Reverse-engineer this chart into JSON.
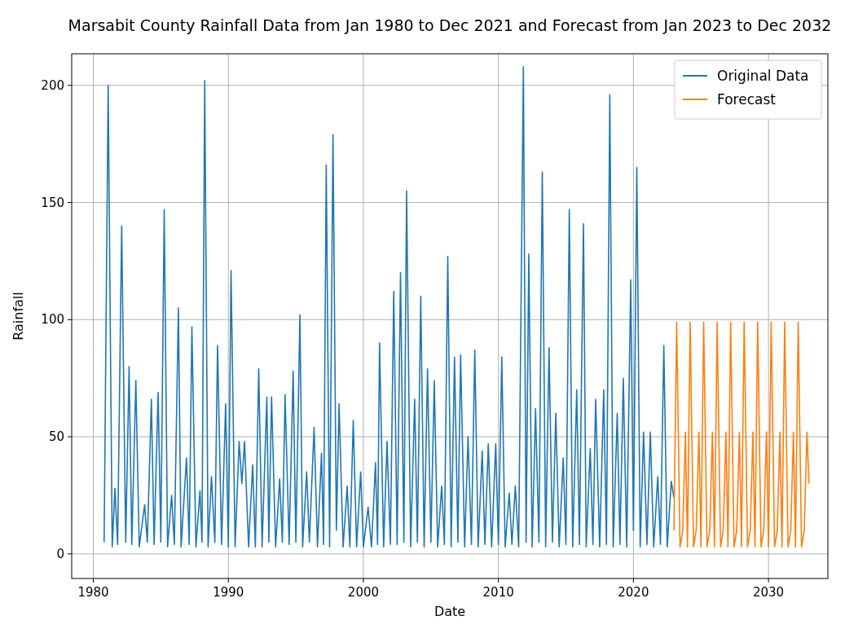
{
  "chart_data": {
    "type": "line",
    "title": "Marsabit County Rainfall Data from Jan 1980 to Dec 2021 and Forecast from Jan 2023 to Dec 2032",
    "xlabel": "Date",
    "ylabel": "Rainfall",
    "xlim": [
      1978.4,
      2034.4
    ],
    "xticks": [
      1980,
      1990,
      2000,
      2010,
      2020,
      2030
    ],
    "ylim": [
      -10.5,
      213.5
    ],
    "yticks": [
      0,
      50,
      100,
      150,
      200
    ],
    "grid": true,
    "legend": "top right",
    "series": [
      {
        "name": "Original Data",
        "color": "#1f77b4",
        "x": [
          1980.8,
          1981.1,
          1981.4,
          1981.6,
          1981.8,
          1982.1,
          1982.4,
          1982.65,
          1982.85,
          1983.15,
          1983.4,
          1983.8,
          1984.0,
          1984.3,
          1984.5,
          1984.8,
          1985.0,
          1985.25,
          1985.5,
          1985.8,
          1986.0,
          1986.3,
          1986.5,
          1986.9,
          1987.1,
          1987.3,
          1987.6,
          1987.9,
          1988.05,
          1988.25,
          1988.5,
          1988.75,
          1989.0,
          1989.2,
          1989.5,
          1989.8,
          1990.0,
          1990.2,
          1990.5,
          1990.8,
          1991.0,
          1991.2,
          1991.5,
          1991.8,
          1992.0,
          1992.25,
          1992.5,
          1992.85,
          1993.0,
          1993.2,
          1993.5,
          1993.8,
          1994.0,
          1994.2,
          1994.5,
          1994.8,
          1995.0,
          1995.3,
          1995.5,
          1995.8,
          1996.0,
          1996.35,
          1996.6,
          1996.9,
          1997.05,
          1997.25,
          1997.5,
          1997.75,
          1998.0,
          1998.2,
          1998.5,
          1998.8,
          1999.0,
          1999.25,
          1999.5,
          1999.8,
          2000.0,
          2000.35,
          2000.6,
          2000.9,
          2001.05,
          2001.2,
          2001.5,
          2001.75,
          2002.0,
          2002.25,
          2002.5,
          2002.75,
          2003.0,
          2003.2,
          2003.5,
          2003.8,
          2004.0,
          2004.25,
          2004.5,
          2004.75,
          2005.0,
          2005.25,
          2005.5,
          2005.8,
          2006.0,
          2006.25,
          2006.5,
          2006.75,
          2007.0,
          2007.2,
          2007.5,
          2007.75,
          2008.0,
          2008.25,
          2008.5,
          2008.8,
          2009.0,
          2009.25,
          2009.5,
          2009.8,
          2010.0,
          2010.25,
          2010.5,
          2010.8,
          2011.0,
          2011.25,
          2011.5,
          2011.85,
          2012.05,
          2012.25,
          2012.5,
          2012.75,
          2013.0,
          2013.25,
          2013.5,
          2013.75,
          2014.0,
          2014.25,
          2014.5,
          2014.8,
          2015.0,
          2015.25,
          2015.5,
          2015.8,
          2016.0,
          2016.3,
          2016.5,
          2016.8,
          2017.0,
          2017.2,
          2017.5,
          2017.8,
          2018.0,
          2018.25,
          2018.5,
          2018.8,
          2019.0,
          2019.25,
          2019.5,
          2019.8,
          2020.0,
          2020.25,
          2020.5,
          2020.75,
          2021.0,
          2021.25,
          2021.5,
          2021.8,
          2022.0,
          2022.25,
          2022.5,
          2022.8,
          2023.0
        ],
        "values": [
          5,
          200,
          3,
          28,
          4,
          140,
          5,
          80,
          4,
          74,
          3,
          21,
          5,
          66,
          4,
          69,
          5,
          147,
          3,
          25,
          4,
          105,
          3,
          41,
          4,
          97,
          3,
          27,
          5,
          202,
          3,
          33,
          5,
          89,
          4,
          64,
          3,
          121,
          3,
          48,
          30,
          48,
          3,
          38,
          3,
          79,
          3,
          67,
          5,
          67,
          3,
          32,
          5,
          68,
          4,
          78,
          5,
          102,
          3,
          35,
          5,
          54,
          3,
          43,
          4,
          166,
          3,
          179,
          10,
          64,
          3,
          29,
          3,
          57,
          3,
          35,
          3,
          20,
          3,
          39,
          4,
          90,
          3,
          48,
          4,
          112,
          4,
          120,
          5,
          155,
          3,
          66,
          5,
          110,
          3,
          79,
          5,
          74,
          3,
          29,
          4,
          127,
          3,
          84,
          5,
          85,
          3,
          50,
          4,
          87,
          3,
          44,
          4,
          47,
          3,
          47,
          4,
          84,
          3,
          26,
          4,
          29,
          3,
          208,
          5,
          128,
          3,
          62,
          5,
          163,
          3,
          88,
          5,
          60,
          3,
          41,
          4,
          147,
          3,
          70,
          4,
          141,
          3,
          45,
          4,
          66,
          3,
          70,
          4,
          196,
          3,
          60,
          4,
          75,
          3,
          117,
          10,
          165,
          3,
          52,
          4,
          52,
          3,
          33,
          4,
          89,
          3,
          31,
          24
        ]
      },
      {
        "name": "Forecast",
        "color": "#ff7f0e",
        "x": [
          2023.0,
          2023.2,
          2023.45,
          2023.65,
          2023.85,
          2024.0,
          2024.2,
          2024.45,
          2024.65,
          2024.85,
          2025.0,
          2025.2,
          2025.45,
          2025.65,
          2025.85,
          2026.0,
          2026.2,
          2026.45,
          2026.65,
          2026.85,
          2027.0,
          2027.2,
          2027.45,
          2027.65,
          2027.85,
          2028.0,
          2028.2,
          2028.45,
          2028.65,
          2028.85,
          2029.0,
          2029.2,
          2029.45,
          2029.65,
          2029.85,
          2030.0,
          2030.2,
          2030.45,
          2030.65,
          2030.85,
          2031.0,
          2031.2,
          2031.45,
          2031.65,
          2031.85,
          2032.0,
          2032.2,
          2032.45,
          2032.65,
          2032.85,
          2033.0
        ],
        "values": [
          10,
          99,
          3,
          10,
          52,
          3,
          99,
          3,
          10,
          52,
          3,
          99,
          3,
          10,
          52,
          3,
          99,
          3,
          10,
          52,
          3,
          99,
          3,
          10,
          52,
          3,
          99,
          3,
          10,
          52,
          3,
          99,
          3,
          10,
          52,
          3,
          99,
          3,
          10,
          52,
          3,
          99,
          3,
          10,
          52,
          3,
          99,
          3,
          10,
          52,
          30
        ]
      }
    ]
  }
}
